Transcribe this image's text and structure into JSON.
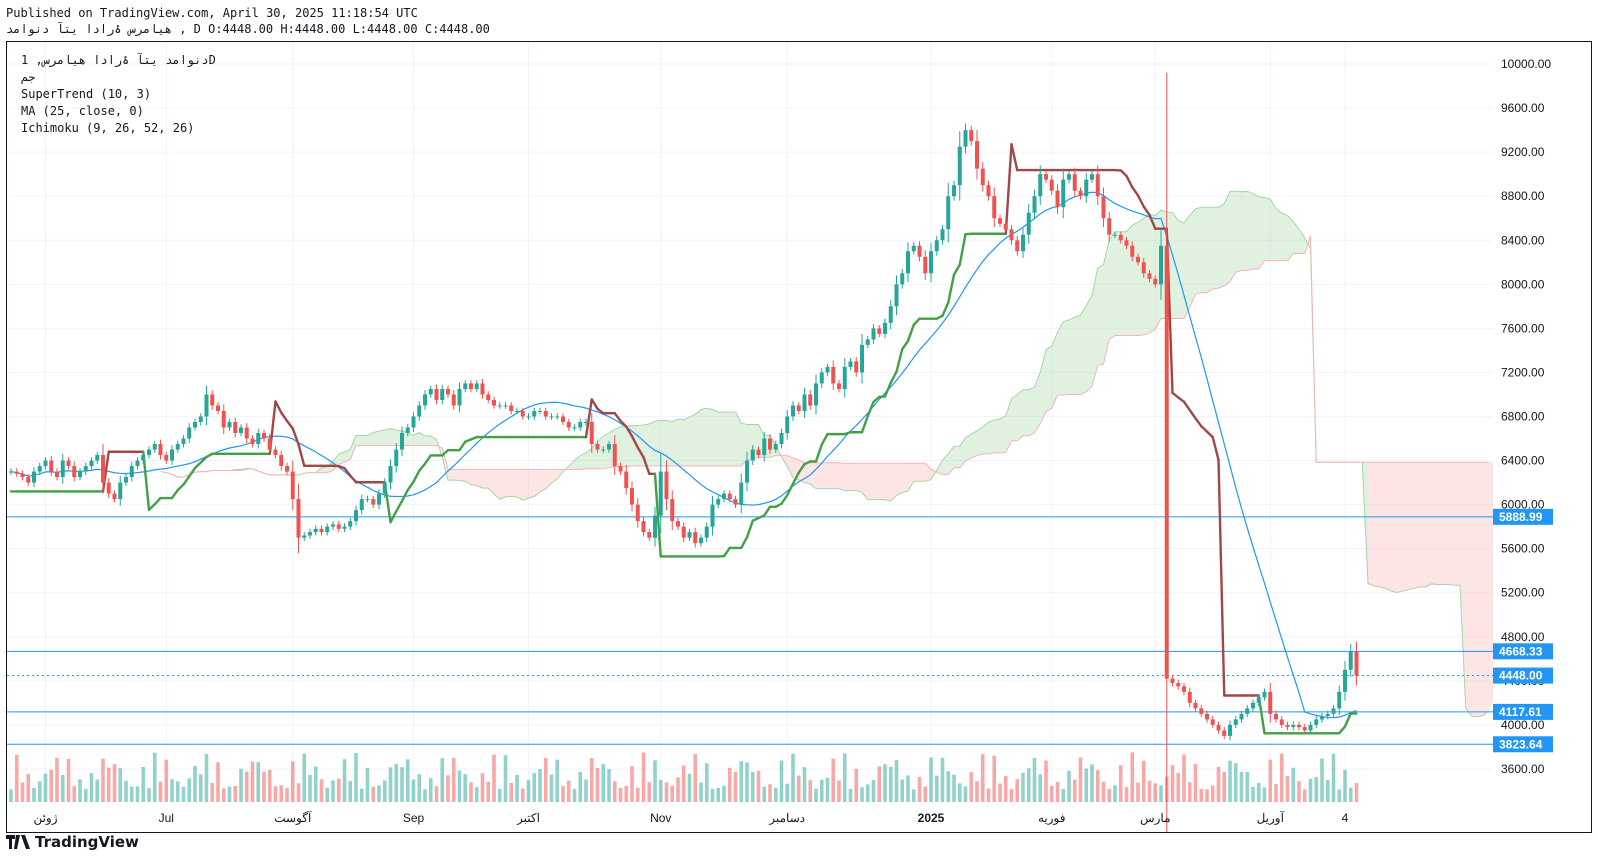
{
  "header": {
    "published": "Published on TradingView.com, April 30, 2025 11:18:54 UTC",
    "symbol_line": "هیامرس ۀرادا یتآ دنوامد , D O:4448.00 H:4448.00 L:4448.00 C:4448.00"
  },
  "legend": {
    "title": "دنوامد یتآ ۀرادا هیامرس, 1D",
    "exchange": "جم",
    "indicator_1": "SuperTrend (10, 3)",
    "indicator_2": "MA (25, close, 0)",
    "indicator_3": "Ichimoku (9, 26, 52, 26)"
  },
  "brand": {
    "name": "TradingView"
  },
  "colors": {
    "up": "#26a69a",
    "down": "#ef5350",
    "supertrend_up": "#43a047",
    "supertrend_down": "#a04848",
    "ma": "#2196f3",
    "cloud_green": "#a5d6a7",
    "cloud_red": "#f8b4b4",
    "hline": "#2196f3",
    "price_tag_bg": "#2196f3"
  },
  "chart_data": {
    "type": "candlestick",
    "y_ticks": [
      3600,
      4000,
      4400,
      4800,
      5200,
      5600,
      6000,
      6400,
      6800,
      7200,
      7600,
      8000,
      8400,
      8800,
      9200,
      9600,
      10000
    ],
    "ylim": [
      3300,
      10200
    ],
    "x_labels": [
      {
        "label": "ژوئن",
        "index": 6
      },
      {
        "label": "Jul",
        "index": 27
      },
      {
        "label": "آگوست",
        "index": 49
      },
      {
        "label": "Sep",
        "index": 70
      },
      {
        "label": "اکتبر",
        "index": 90
      },
      {
        "label": "Nov",
        "index": 113
      },
      {
        "label": "دسامبر",
        "index": 135
      },
      {
        "label": "2025",
        "index": 160
      },
      {
        "label": "فوریه",
        "index": 181
      },
      {
        "label": "مارس",
        "index": 199
      },
      {
        "label": "آوریل",
        "index": 219
      },
      {
        "label": "4",
        "index": 232
      }
    ],
    "price_tags": [
      {
        "value": "5888.99",
        "price": 5889,
        "style": "solid"
      },
      {
        "value": "4668.33",
        "price": 4668,
        "style": "solid"
      },
      {
        "value": "4448.00",
        "price": 4448,
        "style": "dotted"
      },
      {
        "value": "4117.61",
        "price": 4118,
        "style": "solid"
      },
      {
        "value": "3823.64",
        "price": 3824,
        "style": "solid"
      }
    ],
    "closes": [
      6300,
      6280,
      6250,
      6200,
      6300,
      6350,
      6400,
      6300,
      6250,
      6400,
      6350,
      6250,
      6300,
      6350,
      6400,
      6450,
      6200,
      6100,
      6050,
      6200,
      6250,
      6350,
      6400,
      6450,
      6500,
      6550,
      6450,
      6400,
      6500,
      6550,
      6600,
      6700,
      6750,
      6800,
      7000,
      6900,
      6850,
      6700,
      6750,
      6650,
      6700,
      6600,
      6550,
      6650,
      6600,
      6500,
      6450,
      6350,
      6300,
      6050,
      5700,
      5720,
      5750,
      5780,
      5750,
      5800,
      5820,
      5780,
      5800,
      5850,
      5950,
      6050,
      6050,
      6000,
      6100,
      6200,
      6350,
      6500,
      6650,
      6700,
      6800,
      6900,
      7000,
      7050,
      6950,
      7050,
      7000,
      6900,
      7050,
      7100,
      7050,
      7100,
      7000,
      6950,
      6900,
      6900,
      6900,
      6850,
      6850,
      6800,
      6800,
      6850,
      6850,
      6800,
      6800,
      6800,
      6750,
      6700,
      6700,
      6750,
      6750,
      6550,
      6500,
      6500,
      6550,
      6350,
      6300,
      6150,
      6000,
      5850,
      5750,
      5700,
      5900,
      6300,
      6050,
      5850,
      5800,
      5700,
      5750,
      5650,
      5700,
      5800,
      6000,
      6050,
      6100,
      6050,
      6000,
      6200,
      6400,
      6500,
      6450,
      6600,
      6500,
      6550,
      6650,
      6800,
      6900,
      6850,
      7000,
      6900,
      7100,
      7200,
      7250,
      7100,
      7050,
      7250,
      7300,
      7200,
      7450,
      7500,
      7600,
      7550,
      7650,
      7800,
      8000,
      8100,
      8300,
      8350,
      8250,
      8100,
      8300,
      8400,
      8500,
      8800,
      8900,
      9250,
      9400,
      9300,
      9050,
      8900,
      8800,
      8600,
      8550,
      8500,
      8400,
      8300,
      8450,
      8650,
      8800,
      9000,
      8950,
      8850,
      8700,
      8950,
      9000,
      8850,
      8800,
      8950,
      9000,
      8800,
      8600,
      8450,
      8450,
      8400,
      8350,
      8250,
      8200,
      8100,
      8050,
      8000,
      8350,
      4420,
      4380,
      4350,
      4300,
      4200,
      4150,
      4100,
      4050,
      4000,
      3950,
      3900,
      4000,
      4050,
      4100,
      4150,
      4200,
      4250,
      4300,
      4100,
      4050,
      4000,
      3980,
      4000,
      3980,
      3950,
      4000,
      4050,
      4080,
      4100,
      4150,
      4300,
      4500,
      4668,
      4448
    ]
  }
}
